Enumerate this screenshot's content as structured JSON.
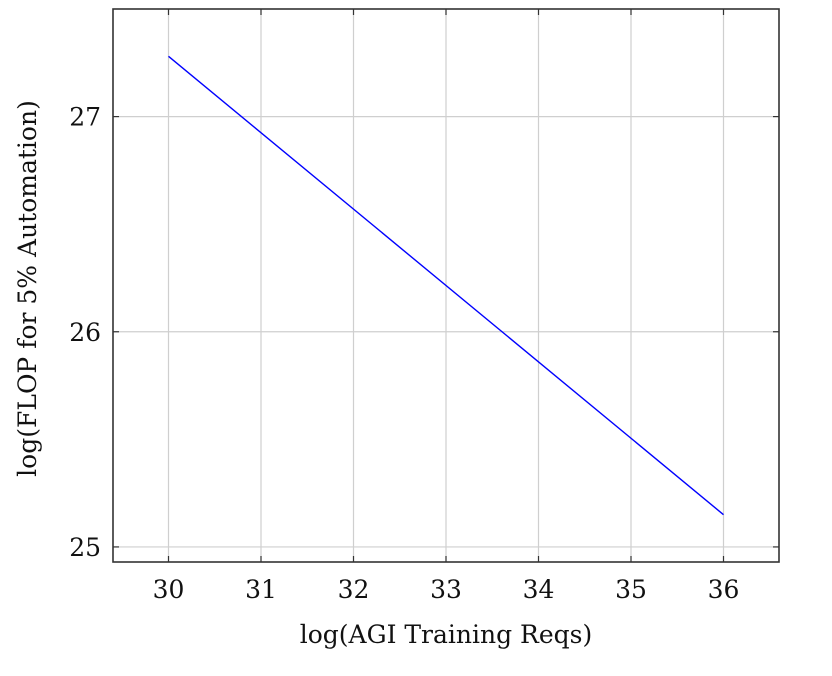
{
  "chart_data": {
    "type": "line",
    "title": "",
    "xlabel": "log(AGI Training Reqs)",
    "ylabel": "log(FLOP for 5% Automation)",
    "xlim": [
      29.4,
      36.6
    ],
    "ylim": [
      24.93,
      27.5
    ],
    "xticks": [
      30,
      31,
      32,
      33,
      34,
      35,
      36
    ],
    "yticks": [
      25,
      26,
      27
    ],
    "grid": true,
    "series": [
      {
        "name": "FLOP for 5% Automation",
        "color": "#0000ff",
        "x": [
          30,
          36
        ],
        "y": [
          27.28,
          25.15
        ]
      }
    ]
  }
}
